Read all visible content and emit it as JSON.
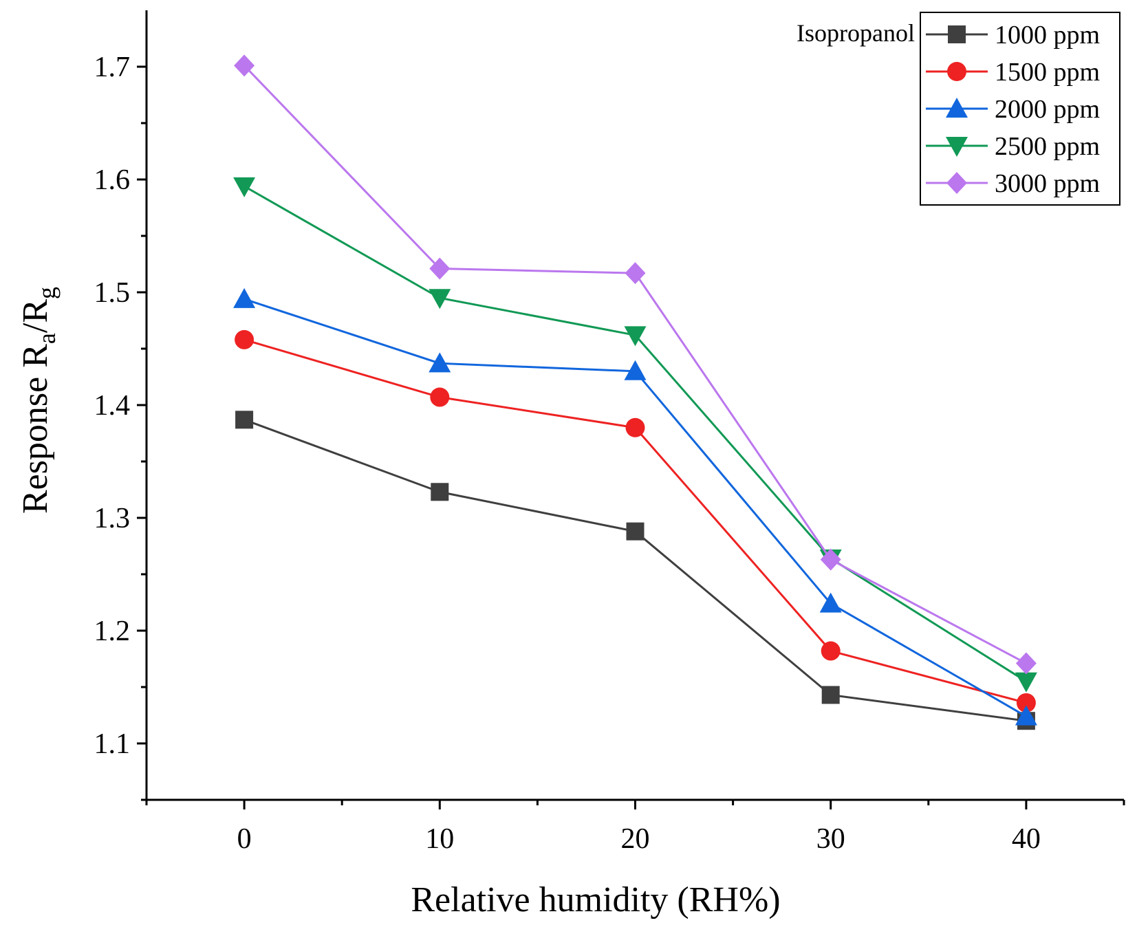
{
  "chart_data": {
    "type": "line",
    "title": "",
    "xlabel": "Relative humidity (RH%)",
    "ylabel_main": "Response R",
    "ylabel_sub_a": "a",
    "ylabel_slash": "/R",
    "ylabel_sub_g": "g",
    "x": [
      0,
      10,
      20,
      30,
      40
    ],
    "xlim": [
      -5,
      45
    ],
    "ylim": [
      1.05,
      1.75
    ],
    "xticks": [
      0,
      10,
      20,
      30,
      40
    ],
    "xtick_labels": [
      "0",
      "10",
      "20",
      "30",
      "40"
    ],
    "yticks": [
      1.1,
      1.2,
      1.3,
      1.4,
      1.5,
      1.6,
      1.7
    ],
    "ytick_labels": [
      "1.1",
      "1.2",
      "1.3",
      "1.4",
      "1.5",
      "1.6",
      "1.7"
    ],
    "legend_title": "Isopropanol",
    "legend_position": "top-right",
    "grid": false,
    "series": [
      {
        "name": "1000 ppm",
        "color": "#3f3f3f",
        "marker": "square",
        "values": [
          1.387,
          1.323,
          1.288,
          1.143,
          1.12
        ]
      },
      {
        "name": "1500 ppm",
        "color": "#ee2222",
        "marker": "circle",
        "values": [
          1.458,
          1.407,
          1.38,
          1.182,
          1.136
        ]
      },
      {
        "name": "2000 ppm",
        "color": "#1166dd",
        "marker": "triangle-up",
        "values": [
          1.494,
          1.437,
          1.43,
          1.224,
          1.124
        ]
      },
      {
        "name": "2500 ppm",
        "color": "#119955",
        "marker": "triangle-down",
        "values": [
          1.594,
          1.495,
          1.462,
          1.264,
          1.155
        ]
      },
      {
        "name": "3000 ppm",
        "color": "#bb77ee",
        "marker": "diamond",
        "values": [
          1.701,
          1.521,
          1.517,
          1.263,
          1.171
        ]
      }
    ]
  }
}
